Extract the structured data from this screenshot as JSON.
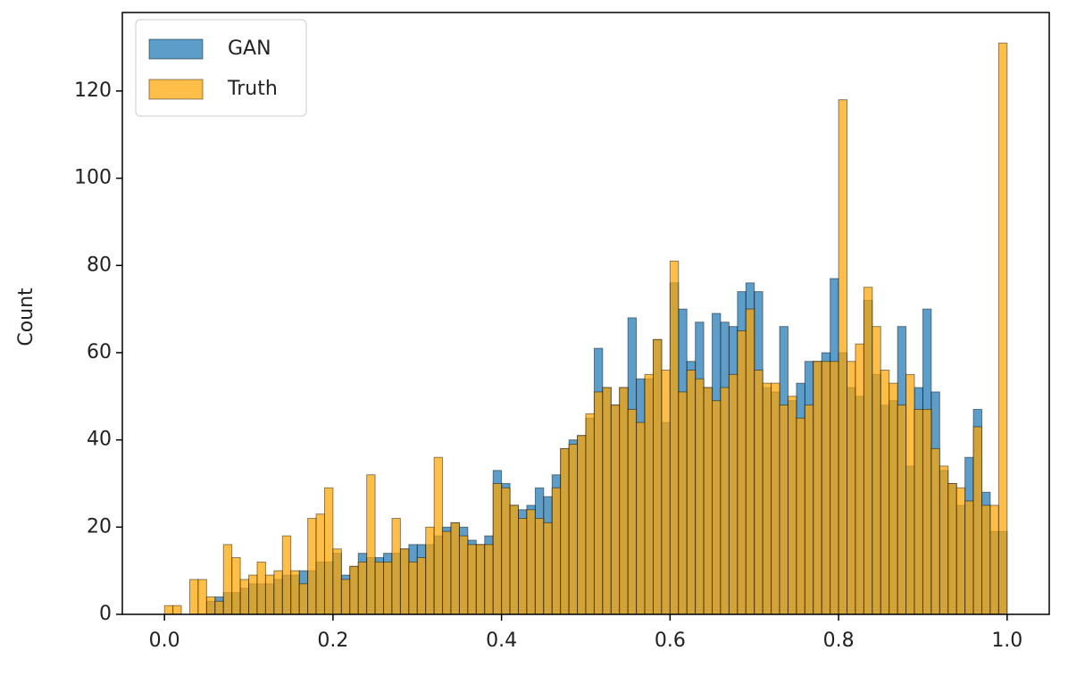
{
  "chart_data": {
    "type": "histogram",
    "ylabel": "Count",
    "bins": [
      0,
      0.01,
      0.02,
      0.03,
      0.04,
      0.05,
      0.06,
      0.07,
      0.08,
      0.09,
      0.1,
      0.11,
      0.12,
      0.13,
      0.14,
      0.15,
      0.16,
      0.17,
      0.18,
      0.19,
      0.2,
      0.21,
      0.22,
      0.23,
      0.24,
      0.25,
      0.26,
      0.27,
      0.28,
      0.29,
      0.3,
      0.31,
      0.32,
      0.33,
      0.34,
      0.35,
      0.36,
      0.37,
      0.38,
      0.39,
      0.4,
      0.41,
      0.42,
      0.43,
      0.44,
      0.45,
      0.46,
      0.47,
      0.48,
      0.49,
      0.5,
      0.51,
      0.52,
      0.53,
      0.54,
      0.55,
      0.56,
      0.57,
      0.58,
      0.59,
      0.6,
      0.61,
      0.62,
      0.63,
      0.64,
      0.65,
      0.66,
      0.67,
      0.68,
      0.69,
      0.7,
      0.71,
      0.72,
      0.73,
      0.74,
      0.75,
      0.76,
      0.77,
      0.78,
      0.79,
      0.8,
      0.81,
      0.82,
      0.83,
      0.84,
      0.85,
      0.86,
      0.87,
      0.88,
      0.89,
      0.9,
      0.91,
      0.92,
      0.93,
      0.94,
      0.95,
      0.96,
      0.97,
      0.98,
      0.99,
      1
    ],
    "series": [
      {
        "name": "GAN",
        "color": "#1f77b4",
        "values": [
          0,
          0,
          0,
          0,
          0,
          3,
          4,
          5,
          5,
          6,
          7,
          7,
          7,
          8,
          9,
          9,
          10,
          10,
          12,
          12,
          14,
          9,
          11,
          14,
          13,
          13,
          14,
          14,
          15,
          16,
          16,
          16,
          18,
          20,
          21,
          20,
          17,
          16,
          18,
          33,
          30,
          25,
          24,
          25,
          29,
          27,
          32,
          38,
          40,
          41,
          45,
          61,
          52,
          48,
          52,
          68,
          54,
          54,
          63,
          44,
          76,
          70,
          58,
          67,
          52,
          69,
          67,
          66,
          74,
          76,
          74,
          52,
          51,
          66,
          49,
          53,
          58,
          58,
          60,
          77,
          60,
          52,
          50,
          72,
          55,
          48,
          49,
          66,
          34,
          52,
          70,
          51,
          33,
          30,
          25,
          36,
          47,
          28,
          19,
          19
        ]
      },
      {
        "name": "Truth",
        "color": "#ffa500",
        "values": [
          2,
          2,
          0,
          8,
          8,
          4,
          3,
          16,
          13,
          8,
          9,
          12,
          9,
          10,
          18,
          10,
          7,
          22,
          23,
          29,
          15,
          8,
          11,
          12,
          32,
          12,
          12,
          22,
          15,
          12,
          13,
          20,
          36,
          19,
          21,
          18,
          16,
          16,
          16,
          30,
          29,
          25,
          22,
          24,
          22,
          21,
          29,
          38,
          39,
          41,
          46,
          51,
          52,
          48,
          52,
          47,
          44,
          55,
          63,
          56,
          81,
          51,
          56,
          54,
          52,
          49,
          52,
          55,
          65,
          70,
          56,
          53,
          53,
          48,
          50,
          45,
          48,
          58,
          58,
          58,
          118,
          58,
          62,
          75,
          66,
          56,
          53,
          48,
          55,
          47,
          47,
          38,
          34,
          30,
          29,
          26,
          43,
          25,
          25,
          131
        ]
      }
    ],
    "xlim": [
      -0.05,
      1.05
    ],
    "ylim": [
      0,
      138
    ],
    "xticks": [
      {
        "value": 0,
        "label": "0.0"
      },
      0.2,
      0.4,
      0.6,
      0.8,
      {
        "value": 1,
        "label": "1.0"
      }
    ],
    "yticks": [
      0,
      20,
      40,
      60,
      80,
      100,
      120
    ],
    "legend": "upper left"
  }
}
